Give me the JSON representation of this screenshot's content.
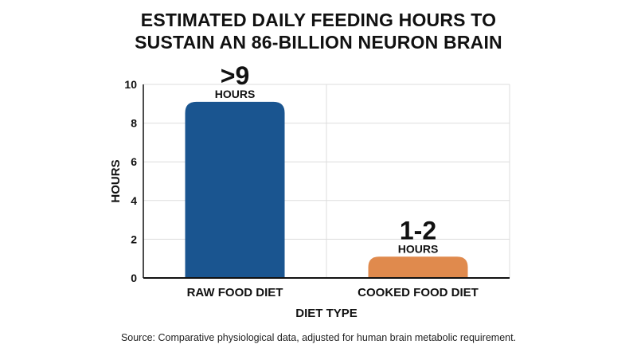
{
  "title_lines": [
    "ESTIMATED DAILY FEEDING HOURS TO",
    "SUSTAIN AN 86-BILLION NEURON BRAIN"
  ],
  "source": "Source: Comparative physiological data, adjusted for human brain metabolic requirement.",
  "colors": {
    "raw_bar": "#1a5590",
    "cooked_bar": "#e08a4d",
    "grid": "#dddddd",
    "axis": "#111111"
  },
  "chart_data": {
    "type": "bar",
    "categories": [
      "RAW FOOD DIET",
      "COOKED FOOD DIET"
    ],
    "values": [
      9.1,
      1.1
    ],
    "value_labels": [
      {
        "main": ">9",
        "unit": "HOURS"
      },
      {
        "main": "1-2",
        "unit": "HOURS"
      }
    ],
    "xlabel": "DIET TYPE",
    "ylabel": "HOURS",
    "ylim": [
      0,
      10
    ],
    "yticks": [
      0,
      2,
      4,
      6,
      8,
      10
    ],
    "grid": true,
    "legend": "none"
  }
}
